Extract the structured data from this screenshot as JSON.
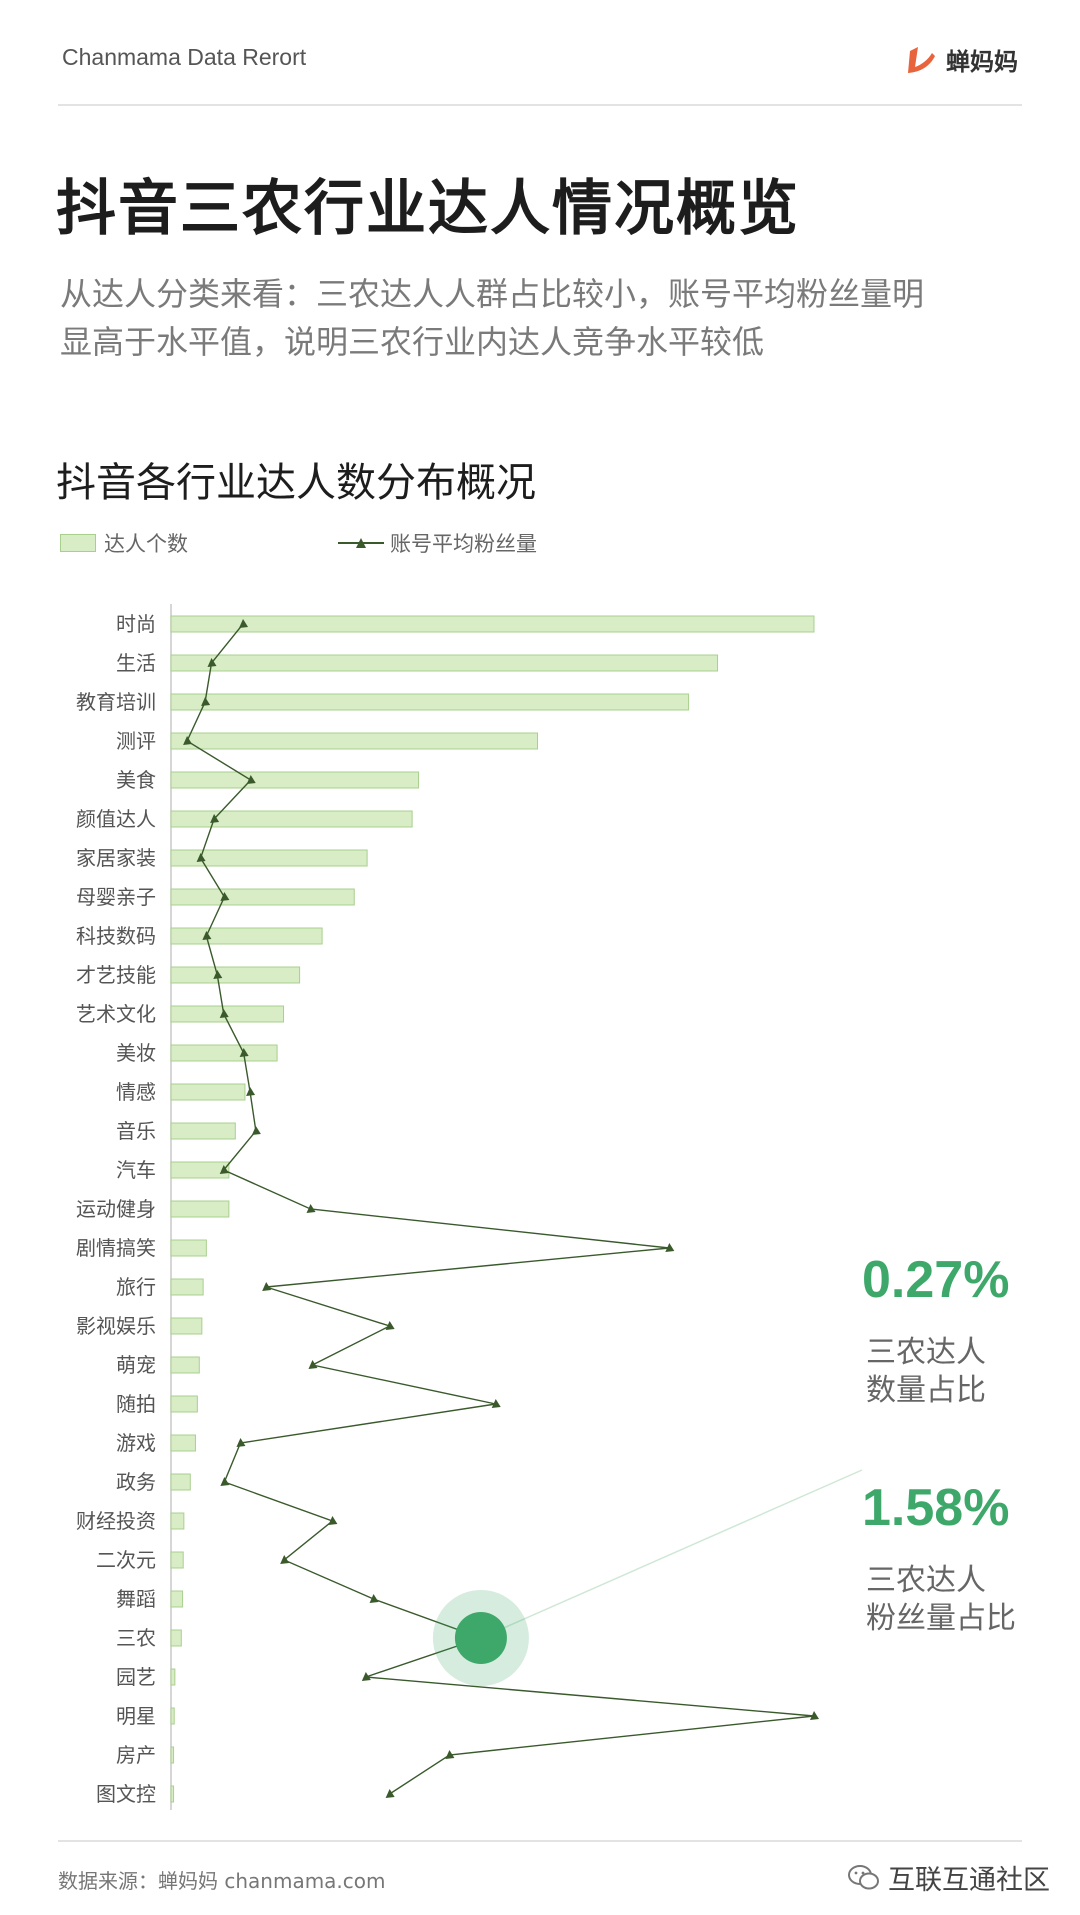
{
  "header": {
    "brand": "Chanmama Data Rerort",
    "logo_text": "蝉妈妈"
  },
  "title": "抖音三农行业达人情况概览",
  "subtitle_lines": [
    "从达人分类来看：三农达人人群占比较小，账号平均粉丝量明",
    "显高于水平值，说明三农行业内达人竞争水平较低"
  ],
  "chart_data": {
    "type": "bar",
    "title": "抖音各行业达人数分布概况",
    "categories": [
      "时尚",
      "生活",
      "教育培训",
      "测评",
      "美食",
      "颜值达人",
      "家居家装",
      "母婴亲子",
      "科技数码",
      "才艺技能",
      "艺术文化",
      "美妆",
      "情感",
      "音乐",
      "汽车",
      "运动健身",
      "剧情搞笑",
      "旅行",
      "影视娱乐",
      "萌宠",
      "随拍",
      "游戏",
      "政务",
      "财经投资",
      "二次元",
      "舞蹈",
      "三农",
      "园艺",
      "明星",
      "房产",
      "图文控"
    ],
    "series": [
      {
        "name": "达人个数",
        "type": "bar",
        "color": "#d8ecc6",
        "values": [
          100,
          85,
          80.5,
          57,
          38.5,
          37.5,
          30.5,
          28.5,
          23.5,
          20,
          17.5,
          16.5,
          11.5,
          10,
          9,
          9,
          5.5,
          5,
          4.8,
          4.4,
          4.1,
          3.8,
          3,
          2,
          1.9,
          1.8,
          1.6,
          0.6,
          0.5,
          0.4,
          0.4
        ]
      },
      {
        "name": "账号平均粉丝量",
        "type": "line",
        "color": "#3a5a2c",
        "values": [
          11.2,
          6.3,
          5.3,
          2.5,
          12.4,
          6.7,
          4.6,
          8.3,
          5.5,
          7.2,
          8.2,
          11.3,
          12.3,
          13.2,
          8.2,
          21.7,
          77.5,
          14.8,
          34,
          22,
          50.5,
          10.8,
          8.3,
          25.1,
          17.6,
          31.5,
          48.2,
          30.3,
          100,
          43.3,
          34
        ]
      }
    ],
    "xlim": [
      0,
      100
    ],
    "highlight_category": "三农"
  },
  "legend": {
    "bar_label": "达人个数",
    "line_label": "账号平均粉丝量"
  },
  "stats": [
    {
      "value": "0.27%",
      "label_lines": [
        "三农达人",
        "数量占比"
      ]
    },
    {
      "value": "1.58%",
      "label_lines": [
        "三农达人",
        "粉丝量占比"
      ]
    }
  ],
  "colors": {
    "accent": "#3ea86a",
    "bar_fill": "#d8ecc6",
    "bar_border": "#a9cf8e",
    "line": "#3a5a2c"
  },
  "footer": {
    "source": "数据来源：蝉妈妈 chanmama.com",
    "wechat": "互联互通社区"
  }
}
